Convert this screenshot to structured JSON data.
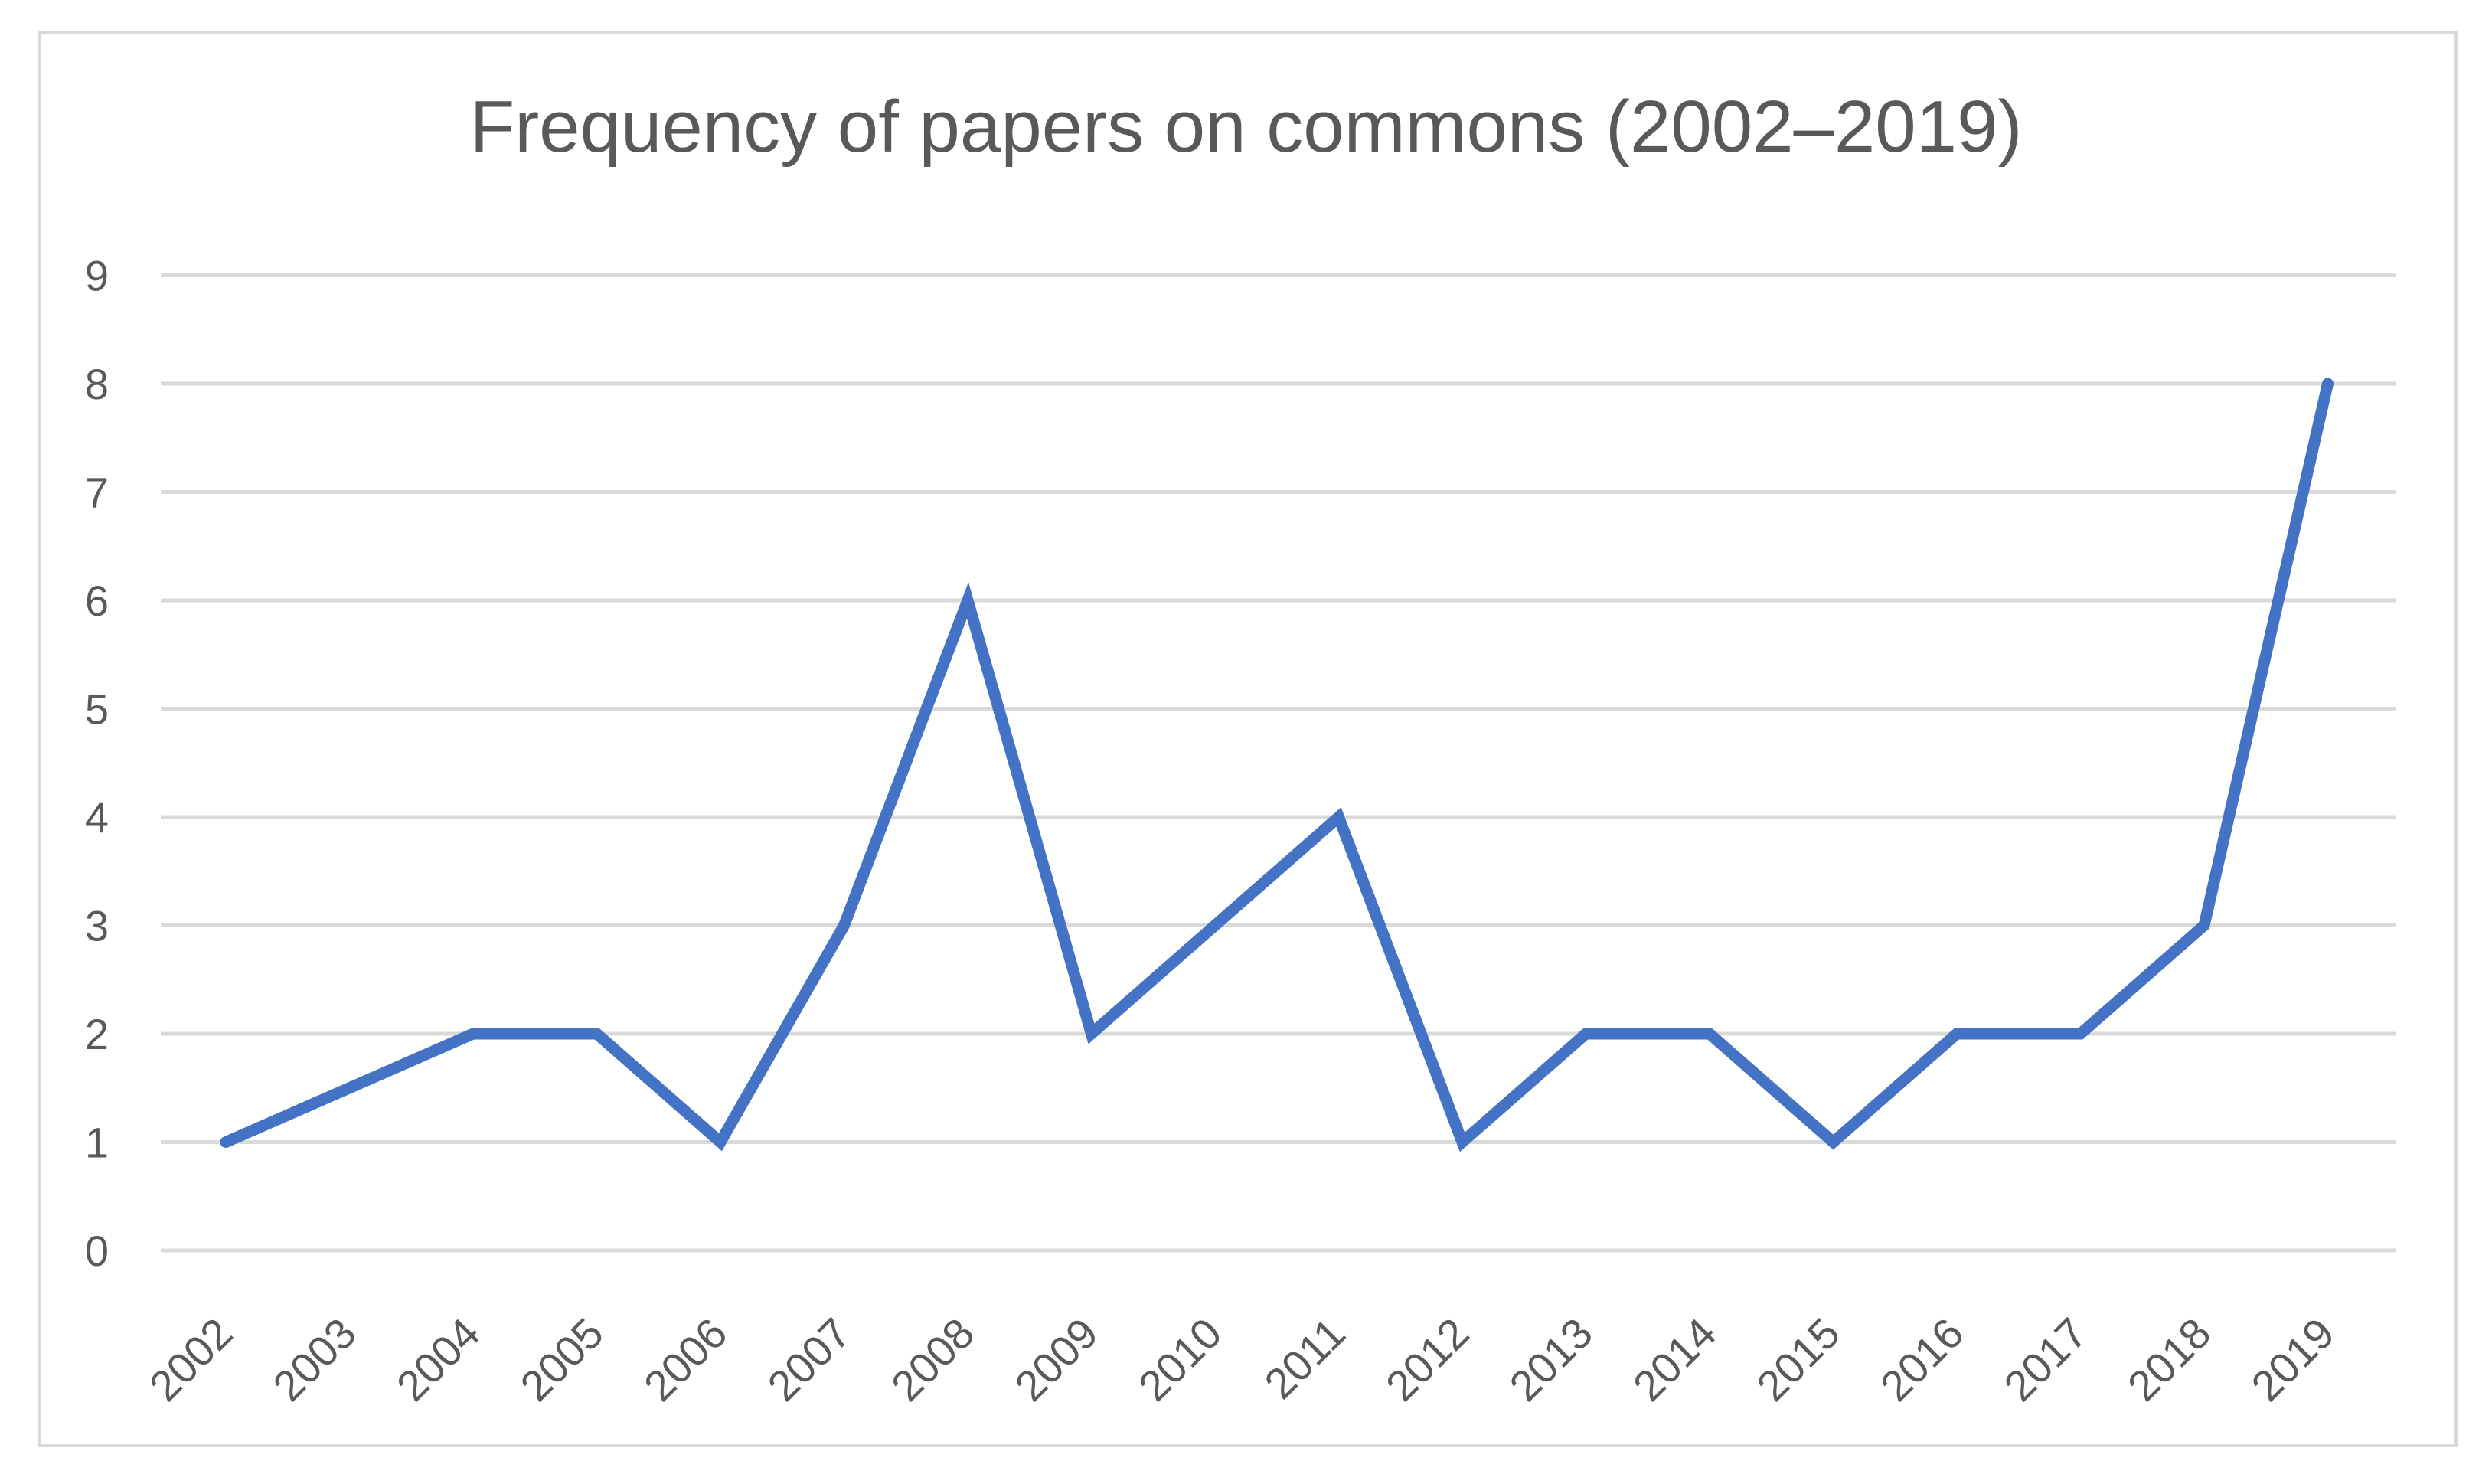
{
  "chart_data": {
    "type": "line",
    "title": "Frequency of papers on commons (2002–2019)",
    "xlabel": "",
    "ylabel": "",
    "categories": [
      "2002",
      "2003",
      "2004",
      "2005",
      "2006",
      "2007",
      "2008",
      "2009",
      "2010",
      "2011",
      "2012",
      "2013",
      "2014",
      "2015",
      "2016",
      "2017",
      "2018",
      "2019"
    ],
    "series": [
      {
        "values": [
          1,
          1.5,
          2,
          2,
          1,
          3,
          6,
          2,
          3,
          4,
          1,
          2,
          2,
          1,
          2,
          2,
          3,
          8
        ],
        "color": "#4472c4"
      }
    ],
    "ylim": [
      0,
      9
    ],
    "yticks": [
      "0",
      "1",
      "2",
      "3",
      "4",
      "5",
      "6",
      "7",
      "8",
      "9"
    ],
    "grid": true,
    "legend": "none",
    "colors": {
      "gridline": "#d9d9d9",
      "text": "#595959",
      "frame": "#d9d9d9"
    }
  }
}
